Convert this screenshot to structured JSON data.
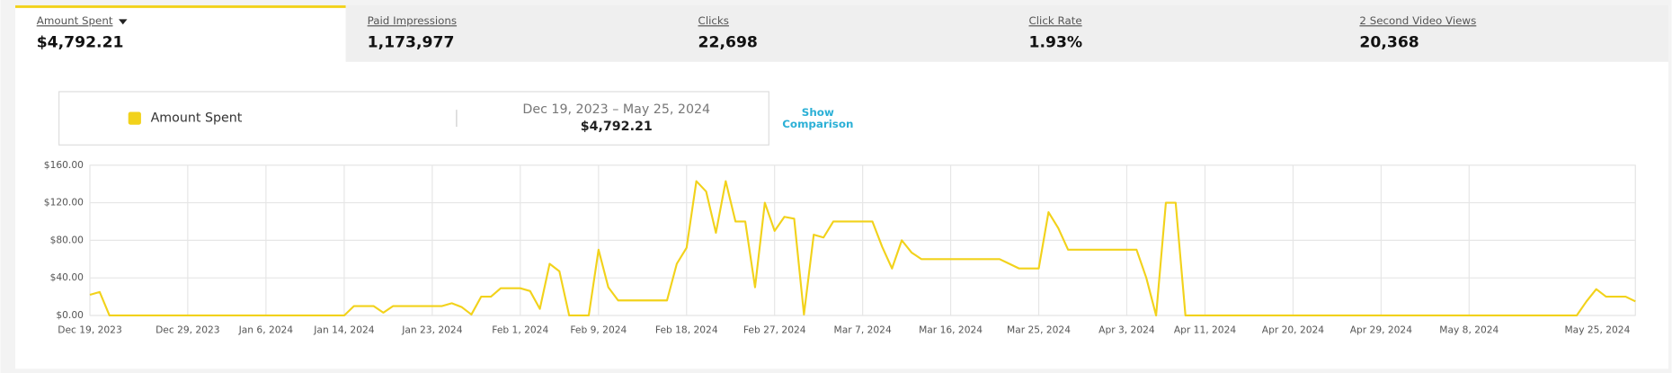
{
  "tabs": [
    {
      "label": "Amount Spent",
      "value": "$4,792.21"
    },
    {
      "label": "Paid Impressions",
      "value": "1,173,977"
    },
    {
      "label": "Clicks",
      "value": "22,698"
    },
    {
      "label": "Click Rate",
      "value": "1.93%"
    },
    {
      "label": "2 Second Video Views",
      "value": "20,368"
    }
  ],
  "legend_box": {
    "series": "Amount Spent",
    "date_range": "Dec 19, 2023 – May 25, 2024",
    "total": "$4,792.21",
    "show_comparison": [
      "Show",
      "Comparison"
    ]
  },
  "chart_data": {
    "type": "line",
    "grid": true,
    "categories": [
      "Dec 19, 2023",
      null,
      null,
      null,
      null,
      null,
      null,
      null,
      null,
      null,
      "Dec 29, 2023",
      null,
      null,
      null,
      null,
      null,
      null,
      null,
      "Jan 6, 2024",
      null,
      null,
      null,
      null,
      null,
      null,
      null,
      "Jan 14, 2024",
      null,
      null,
      null,
      null,
      null,
      null,
      null,
      null,
      "Jan 23, 2024",
      null,
      null,
      null,
      null,
      null,
      null,
      null,
      null,
      "Feb 1, 2024",
      null,
      null,
      null,
      null,
      null,
      null,
      null,
      "Feb 9, 2024",
      null,
      null,
      null,
      null,
      null,
      null,
      null,
      null,
      "Feb 18, 2024",
      null,
      null,
      null,
      null,
      null,
      null,
      null,
      null,
      "Feb 27, 2024",
      null,
      null,
      null,
      null,
      null,
      null,
      null,
      null,
      "Mar 7, 2024",
      null,
      null,
      null,
      null,
      null,
      null,
      null,
      null,
      "Mar 16, 2024",
      null,
      null,
      null,
      null,
      null,
      null,
      null,
      null,
      "Mar 25, 2024",
      null,
      null,
      null,
      null,
      null,
      null,
      null,
      null,
      "Apr 3, 2024",
      null,
      null,
      null,
      null,
      null,
      null,
      null,
      "Apr 11, 2024",
      null,
      null,
      null,
      null,
      null,
      null,
      null,
      null,
      "Apr 20, 2024",
      null,
      null,
      null,
      null,
      null,
      null,
      null,
      null,
      "Apr 29, 2024",
      null,
      null,
      null,
      null,
      null,
      null,
      null,
      null,
      "May 8, 2024",
      null,
      null,
      null,
      null,
      null,
      null,
      null,
      null,
      null,
      null,
      null,
      null,
      null,
      null,
      null,
      null,
      "May 25, 2024"
    ],
    "series": [
      {
        "name": "Amount Spent",
        "color": "#f2d21b",
        "values": [
          22,
          25,
          0,
          0,
          0,
          0,
          0,
          0,
          0,
          0,
          0,
          0,
          0,
          0,
          0,
          0,
          0,
          0,
          0,
          0,
          0,
          0,
          0,
          0,
          0,
          0,
          0,
          10,
          10,
          10,
          3,
          10,
          10,
          10,
          10,
          10,
          10,
          13,
          9,
          1,
          20,
          20,
          29,
          29,
          29,
          26,
          7,
          55,
          47,
          0,
          0,
          0,
          70,
          30,
          16,
          16,
          16,
          16,
          16,
          16,
          55,
          72,
          143,
          132,
          88,
          143,
          100,
          100,
          30,
          120,
          90,
          105,
          103,
          1,
          86,
          83,
          100,
          100,
          100,
          100,
          100,
          73,
          50,
          80,
          67,
          60,
          60,
          60,
          60,
          60,
          60,
          60,
          60,
          60,
          55,
          50,
          50,
          50,
          110,
          93,
          70,
          70,
          70,
          70,
          70,
          70,
          70,
          70,
          40,
          0,
          120,
          120,
          0,
          0,
          0,
          0,
          0,
          0,
          0,
          0,
          0,
          0,
          0,
          0,
          0,
          0,
          0,
          0,
          0,
          0,
          0,
          0,
          0,
          0,
          0,
          0,
          0,
          0,
          0,
          0,
          0,
          0,
          0,
          0,
          0,
          0,
          0,
          0,
          0,
          0,
          0,
          0,
          0,
          15,
          28,
          20,
          20,
          20,
          15
        ]
      }
    ],
    "ylim": [
      0,
      160
    ],
    "yticks": [
      {
        "value": 0,
        "label": "$0.00"
      },
      {
        "value": 40,
        "label": "$40.00"
      },
      {
        "value": 80,
        "label": "$80.00"
      },
      {
        "value": 120,
        "label": "$120.00"
      },
      {
        "value": 160,
        "label": "$160.00"
      }
    ]
  }
}
